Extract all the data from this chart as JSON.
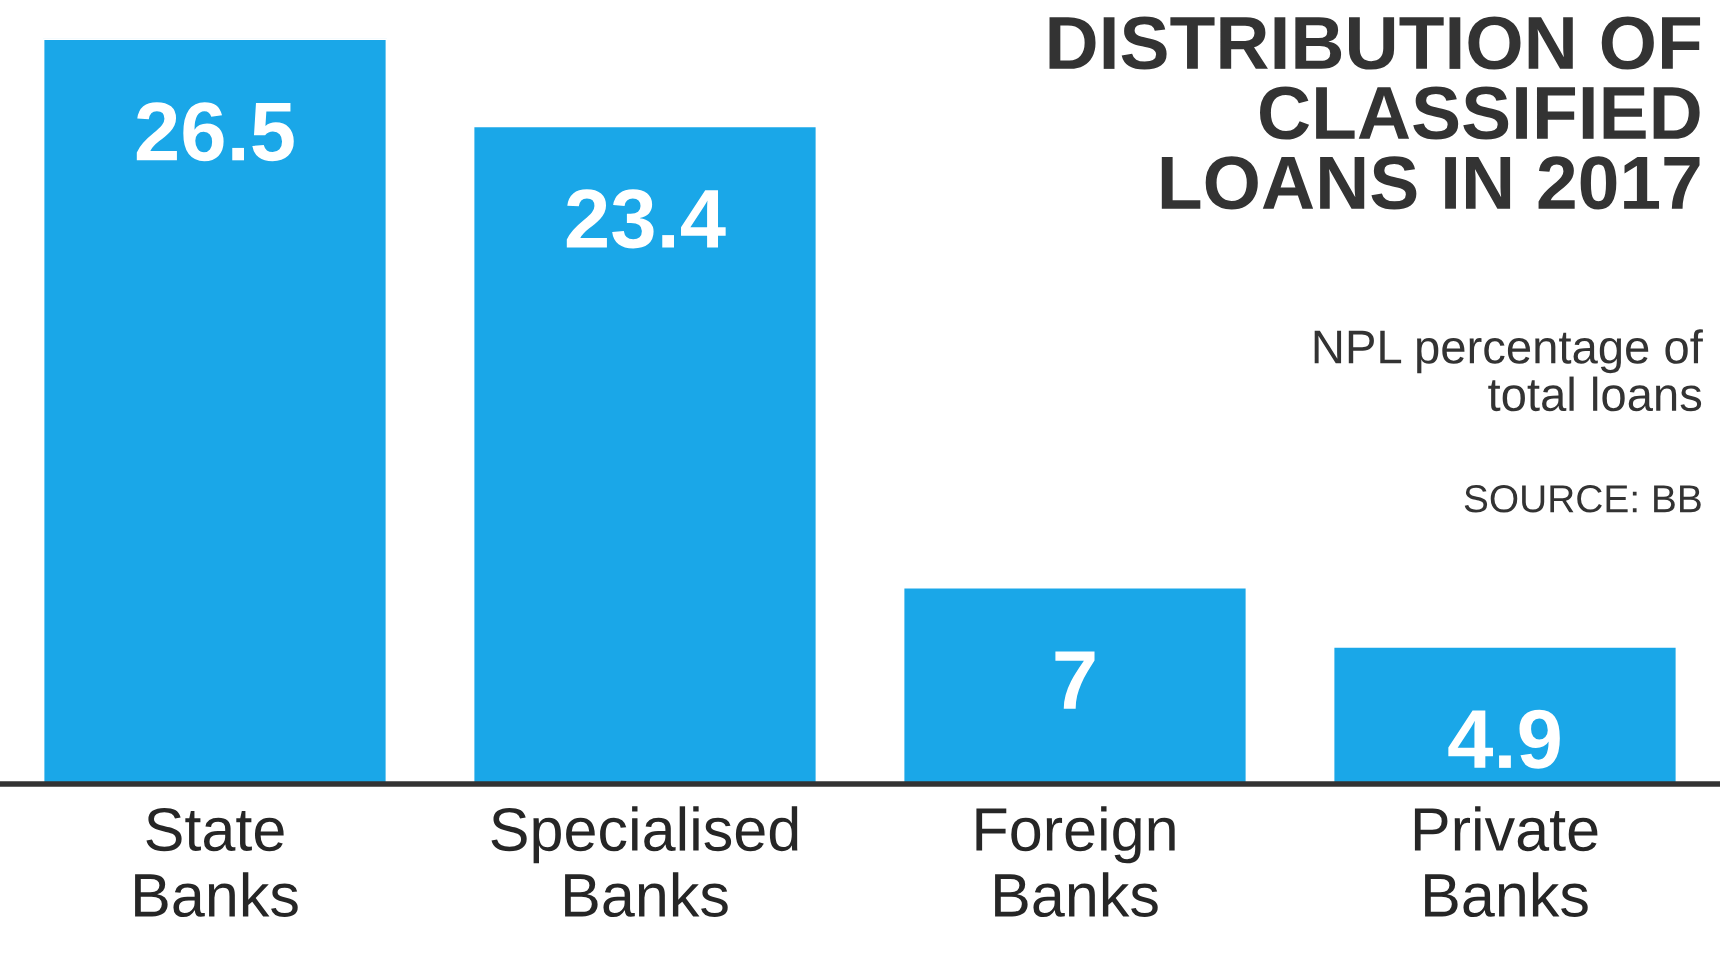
{
  "chart_data": {
    "type": "bar",
    "title": "DISTRIBUTION OF\nCLASSIFIED\nLOANS IN 2017",
    "subtitle": "NPL percentage of\ntotal loans",
    "annotations": [
      "SOURCE: BB"
    ],
    "categories": [
      "State\nBanks",
      "Specialised\nBanks",
      "Foreign\nBanks",
      "Private\nBanks"
    ],
    "values": [
      26.5,
      23.4,
      7,
      4.9
    ],
    "color": "#1aa7e8",
    "data_labels": true,
    "grid": false,
    "legend": false
  }
}
